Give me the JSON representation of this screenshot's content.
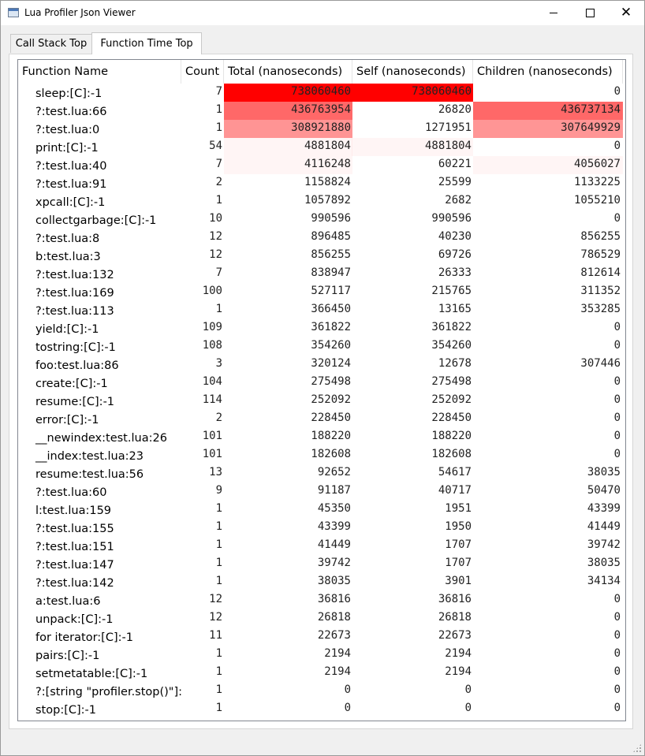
{
  "window": {
    "title": "Lua Profiler Json Viewer",
    "minimize_icon": "minimize-icon",
    "maximize_icon": "maximize-icon",
    "close_icon": "close-icon",
    "close_glyph": "✕"
  },
  "tabs": [
    {
      "label": "Call Stack Top",
      "active": false
    },
    {
      "label": "Function Time Top",
      "active": true
    }
  ],
  "table": {
    "columns": [
      "Function Name",
      "Count",
      "Total (nanoseconds)",
      "Self (nanoseconds)",
      "Children (nanoseconds)"
    ],
    "highlight_color": "#ff0000",
    "max_value": 738060460,
    "rows": [
      {
        "name": "sleep:[C]:-1",
        "count": "7",
        "total": "738060460",
        "self": "738060460",
        "children": "0"
      },
      {
        "name": "?:test.lua:66",
        "count": "1",
        "total": "436763954",
        "self": "26820",
        "children": "436737134"
      },
      {
        "name": "?:test.lua:0",
        "count": "1",
        "total": "308921880",
        "self": "1271951",
        "children": "307649929"
      },
      {
        "name": "print:[C]:-1",
        "count": "54",
        "total": "4881804",
        "self": "4881804",
        "children": "0"
      },
      {
        "name": "?:test.lua:40",
        "count": "7",
        "total": "4116248",
        "self": "60221",
        "children": "4056027"
      },
      {
        "name": "?:test.lua:91",
        "count": "2",
        "total": "1158824",
        "self": "25599",
        "children": "1133225"
      },
      {
        "name": "xpcall:[C]:-1",
        "count": "1",
        "total": "1057892",
        "self": "2682",
        "children": "1055210"
      },
      {
        "name": "collectgarbage:[C]:-1",
        "count": "10",
        "total": "990596",
        "self": "990596",
        "children": "0"
      },
      {
        "name": "?:test.lua:8",
        "count": "12",
        "total": "896485",
        "self": "40230",
        "children": "856255"
      },
      {
        "name": "b:test.lua:3",
        "count": "12",
        "total": "856255",
        "self": "69726",
        "children": "786529"
      },
      {
        "name": "?:test.lua:132",
        "count": "7",
        "total": "838947",
        "self": "26333",
        "children": "812614"
      },
      {
        "name": "?:test.lua:169",
        "count": "100",
        "total": "527117",
        "self": "215765",
        "children": "311352"
      },
      {
        "name": "?:test.lua:113",
        "count": "1",
        "total": "366450",
        "self": "13165",
        "children": "353285"
      },
      {
        "name": "yield:[C]:-1",
        "count": "109",
        "total": "361822",
        "self": "361822",
        "children": "0"
      },
      {
        "name": "tostring:[C]:-1",
        "count": "108",
        "total": "354260",
        "self": "354260",
        "children": "0"
      },
      {
        "name": "foo:test.lua:86",
        "count": "3",
        "total": "320124",
        "self": "12678",
        "children": "307446"
      },
      {
        "name": "create:[C]:-1",
        "count": "104",
        "total": "275498",
        "self": "275498",
        "children": "0"
      },
      {
        "name": "resume:[C]:-1",
        "count": "114",
        "total": "252092",
        "self": "252092",
        "children": "0"
      },
      {
        "name": "error:[C]:-1",
        "count": "2",
        "total": "228450",
        "self": "228450",
        "children": "0"
      },
      {
        "name": "__newindex:test.lua:26",
        "count": "101",
        "total": "188220",
        "self": "188220",
        "children": "0"
      },
      {
        "name": "__index:test.lua:23",
        "count": "101",
        "total": "182608",
        "self": "182608",
        "children": "0"
      },
      {
        "name": "resume:test.lua:56",
        "count": "13",
        "total": "92652",
        "self": "54617",
        "children": "38035"
      },
      {
        "name": "?:test.lua:60",
        "count": "9",
        "total": "91187",
        "self": "40717",
        "children": "50470"
      },
      {
        "name": "l:test.lua:159",
        "count": "1",
        "total": "45350",
        "self": "1951",
        "children": "43399"
      },
      {
        "name": "?:test.lua:155",
        "count": "1",
        "total": "43399",
        "self": "1950",
        "children": "41449"
      },
      {
        "name": "?:test.lua:151",
        "count": "1",
        "total": "41449",
        "self": "1707",
        "children": "39742"
      },
      {
        "name": "?:test.lua:147",
        "count": "1",
        "total": "39742",
        "self": "1707",
        "children": "38035"
      },
      {
        "name": "?:test.lua:142",
        "count": "1",
        "total": "38035",
        "self": "3901",
        "children": "34134"
      },
      {
        "name": "a:test.lua:6",
        "count": "12",
        "total": "36816",
        "self": "36816",
        "children": "0"
      },
      {
        "name": "unpack:[C]:-1",
        "count": "12",
        "total": "26818",
        "self": "26818",
        "children": "0"
      },
      {
        "name": "for iterator:[C]:-1",
        "count": "11",
        "total": "22673",
        "self": "22673",
        "children": "0"
      },
      {
        "name": "pairs:[C]:-1",
        "count": "1",
        "total": "2194",
        "self": "2194",
        "children": "0"
      },
      {
        "name": "setmetatable:[C]:-1",
        "count": "1",
        "total": "2194",
        "self": "2194",
        "children": "0"
      },
      {
        "name": "?:[string \"profiler.stop()\"]:0",
        "count": "1",
        "total": "0",
        "self": "0",
        "children": "0"
      },
      {
        "name": "stop:[C]:-1",
        "count": "1",
        "total": "0",
        "self": "0",
        "children": "0"
      }
    ]
  }
}
